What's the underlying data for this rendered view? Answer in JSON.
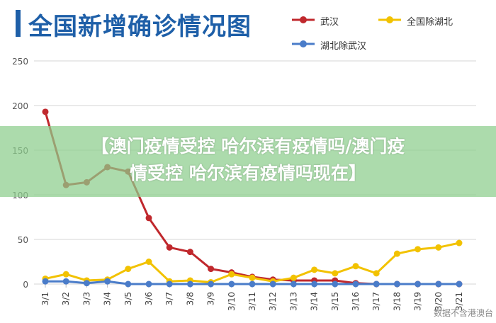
{
  "header": {
    "title": "全国新增确诊情况图"
  },
  "banner": {
    "line1": "【澳门疫情受控 哈尔滨有疫情吗/澳门疫",
    "line2": "情受控 哈尔滨有疫情吗现在】"
  },
  "watermark": "数据不含港澳台",
  "chart_data": {
    "type": "line",
    "title": "全国新增确诊情况图",
    "xlabel": "",
    "ylabel": "",
    "categories": [
      "3/1",
      "3/2",
      "3/3",
      "3/4",
      "3/5",
      "3/6",
      "3/7",
      "3/8",
      "3/9",
      "3/10",
      "3/11",
      "3/12",
      "3/13",
      "3/14",
      "3/15",
      "3/16",
      "3/17",
      "3/18",
      "3/19",
      "3/20",
      "3/21"
    ],
    "ylim": [
      0,
      250
    ],
    "yticks": [
      0,
      50,
      100,
      150,
      200,
      250
    ],
    "grid": true,
    "legend_position": "top-right",
    "series": [
      {
        "name": "武汉",
        "color": "#c0282d",
        "values": [
          193,
          111,
          114,
          131,
          126,
          74,
          41,
          36,
          17,
          13,
          8,
          5,
          4,
          4,
          4,
          1,
          0,
          0,
          0,
          0,
          0
        ]
      },
      {
        "name": "全国除湖北",
        "color": "#f2c200",
        "values": [
          6,
          11,
          4,
          5,
          17,
          25,
          3,
          4,
          2,
          11,
          7,
          3,
          7,
          16,
          12,
          20,
          12,
          34,
          39,
          41,
          46
        ]
      },
      {
        "name": "湖北除武汉",
        "color": "#4a7cc9",
        "values": [
          3,
          3,
          1,
          3,
          0,
          0,
          0,
          0,
          0,
          0,
          0,
          0,
          0,
          0,
          0,
          0,
          0,
          0,
          0,
          0,
          0
        ]
      }
    ]
  }
}
